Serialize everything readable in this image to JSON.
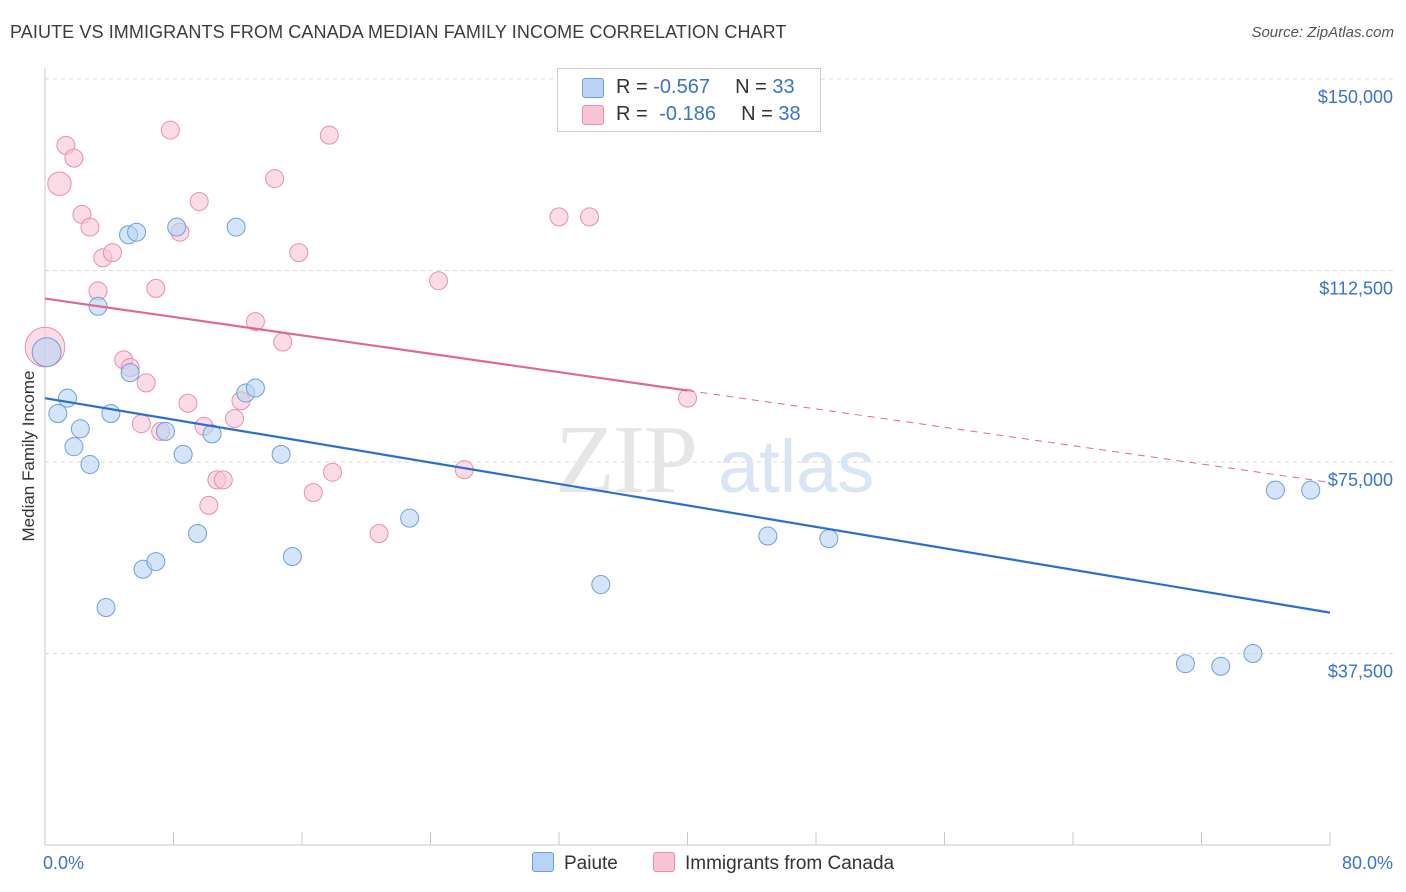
{
  "title": "PAIUTE VS IMMIGRANTS FROM CANADA MEDIAN FAMILY INCOME CORRELATION CHART",
  "source": "Source: ZipAtlas.com",
  "watermark": {
    "zip": "ZIP",
    "atlas": "atlas"
  },
  "colors": {
    "paiute_fill": "#b8d3f3",
    "paiute_stroke": "#6f9fda",
    "paiute_line": "#2a6fd0",
    "canada_fill": "#f8c4d5",
    "canada_stroke": "#e98faf",
    "canada_line": "#e06893",
    "axis_value": "#3b73c6",
    "grid": "#d8d8d8"
  },
  "legend": {
    "rows": [
      {
        "r_label": "R =",
        "r_value": "-0.567",
        "n_label": "N =",
        "n_value": "33"
      },
      {
        "r_label": "R =",
        "r_value": "-0.186",
        "n_label": "N =",
        "n_value": "38"
      }
    ]
  },
  "chart_data": {
    "type": "scatter",
    "xlabel": "",
    "ylabel": "Median Family Income",
    "xlim": [
      0,
      80
    ],
    "ylim": [
      0,
      150000
    ],
    "x_tick_labels": [
      "0.0%",
      "80.0%"
    ],
    "y_ticks": [
      {
        "value": 37500,
        "label": "$37,500"
      },
      {
        "value": 75000,
        "label": "$75,000"
      },
      {
        "value": 112500,
        "label": "$112,500"
      },
      {
        "value": 150000,
        "label": "$150,000"
      }
    ],
    "grid": true,
    "series": [
      {
        "name": "Paiute",
        "points": [
          [
            0.1,
            96500,
            1.6
          ],
          [
            0.8,
            84500,
            1
          ],
          [
            1.4,
            87500,
            1
          ],
          [
            2.2,
            81500,
            1
          ],
          [
            1.8,
            78000,
            1
          ],
          [
            2.8,
            74500,
            1
          ],
          [
            3.3,
            105500,
            1
          ],
          [
            4.1,
            84500,
            1
          ],
          [
            3.8,
            46500,
            1
          ],
          [
            5.2,
            119500,
            1
          ],
          [
            5.7,
            120000,
            1
          ],
          [
            5.3,
            92500,
            1
          ],
          [
            6.1,
            54000,
            1
          ],
          [
            6.9,
            55500,
            1
          ],
          [
            7.5,
            81000,
            1
          ],
          [
            8.2,
            121000,
            1
          ],
          [
            8.6,
            76500,
            1
          ],
          [
            9.5,
            61000,
            1
          ],
          [
            10.4,
            80500,
            1
          ],
          [
            11.9,
            121000,
            1
          ],
          [
            12.5,
            88500,
            1
          ],
          [
            13.1,
            89500,
            1
          ],
          [
            14.7,
            76500,
            1
          ],
          [
            15.4,
            56500,
            1
          ],
          [
            22.7,
            64000,
            1
          ],
          [
            34.6,
            51000,
            1
          ],
          [
            45.0,
            60500,
            1
          ],
          [
            48.8,
            60000,
            1
          ],
          [
            71.0,
            35500,
            1
          ],
          [
            73.2,
            35000,
            1
          ],
          [
            75.2,
            37500,
            1
          ],
          [
            76.6,
            69500,
            1
          ],
          [
            78.8,
            69500,
            1
          ]
        ],
        "trend": {
          "x": [
            0,
            80
          ],
          "y": [
            87500,
            45500
          ]
        }
      },
      {
        "name": "Immigrants from Canada",
        "points": [
          [
            0.0,
            97500,
            2.2
          ],
          [
            0.9,
            129500,
            1.3
          ],
          [
            1.3,
            137000,
            1
          ],
          [
            1.8,
            134500,
            1
          ],
          [
            2.3,
            123500,
            1
          ],
          [
            2.8,
            121000,
            1
          ],
          [
            3.3,
            108500,
            1
          ],
          [
            3.6,
            115000,
            1
          ],
          [
            4.2,
            116000,
            1
          ],
          [
            4.9,
            95000,
            1
          ],
          [
            5.3,
            93500,
            1
          ],
          [
            6.0,
            82500,
            1
          ],
          [
            6.3,
            90500,
            1
          ],
          [
            6.9,
            109000,
            1
          ],
          [
            7.2,
            81000,
            1
          ],
          [
            7.8,
            140000,
            1
          ],
          [
            8.4,
            120000,
            1
          ],
          [
            8.9,
            86500,
            1
          ],
          [
            9.6,
            126000,
            1
          ],
          [
            9.9,
            82000,
            1
          ],
          [
            10.2,
            66500,
            1
          ],
          [
            10.7,
            71500,
            1
          ],
          [
            11.1,
            71500,
            1
          ],
          [
            11.8,
            83500,
            1
          ],
          [
            12.2,
            87000,
            1
          ],
          [
            13.1,
            102500,
            1
          ],
          [
            14.3,
            130500,
            1
          ],
          [
            14.8,
            98500,
            1
          ],
          [
            15.8,
            116000,
            1
          ],
          [
            16.7,
            69000,
            1
          ],
          [
            17.7,
            139000,
            1
          ],
          [
            17.9,
            73000,
            1
          ],
          [
            20.8,
            61000,
            1
          ],
          [
            24.5,
            110500,
            1
          ],
          [
            26.1,
            73500,
            1
          ],
          [
            32.0,
            123000,
            1
          ],
          [
            33.9,
            123000,
            1
          ],
          [
            40.0,
            87500,
            1
          ]
        ],
        "trend": {
          "x": [
            0,
            40
          ],
          "y": [
            107000,
            89000
          ]
        },
        "trend_extension": {
          "x": [
            40,
            80
          ],
          "y": [
            89000,
            71000
          ]
        }
      }
    ]
  },
  "bottom_legend": {
    "paiute": "Paiute",
    "canada": "Immigrants from Canada"
  }
}
